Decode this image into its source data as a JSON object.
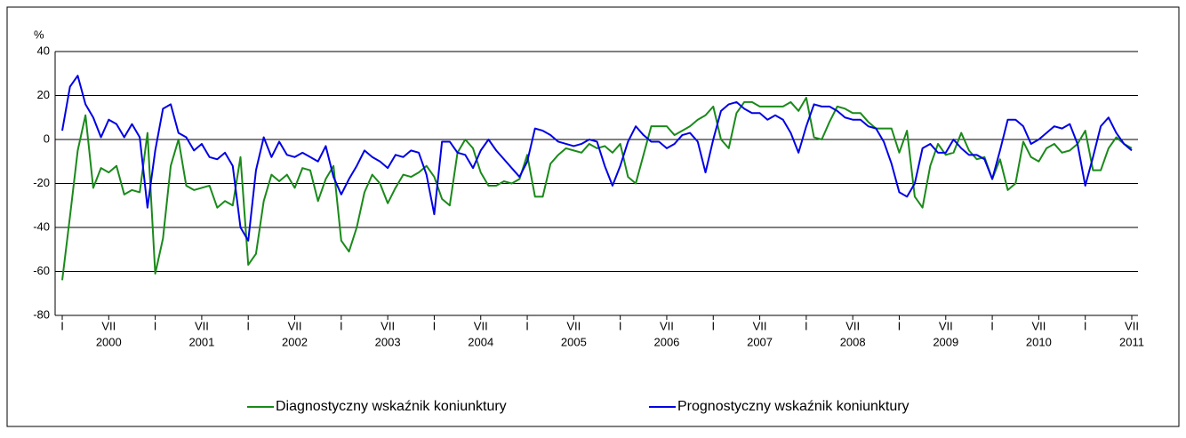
{
  "chart_data": {
    "type": "line",
    "y_label": "%",
    "categories": [
      "I",
      null,
      null,
      null,
      null,
      null,
      "VII",
      null,
      null,
      null,
      null,
      null,
      "I",
      null,
      null,
      null,
      null,
      null,
      "VII",
      null,
      null,
      null,
      null,
      null,
      "I",
      null,
      null,
      null,
      null,
      null,
      "VII",
      null,
      null,
      null,
      null,
      null,
      "I",
      null,
      null,
      null,
      null,
      null,
      "VII",
      null,
      null,
      null,
      null,
      null,
      "I",
      null,
      null,
      null,
      null,
      null,
      "VII",
      null,
      null,
      null,
      null,
      null,
      "I",
      null,
      null,
      null,
      null,
      null,
      "VII",
      null,
      null,
      null,
      null,
      null,
      "I",
      null,
      null,
      null,
      null,
      null,
      "VII",
      null,
      null,
      null,
      null,
      null,
      "I",
      null,
      null,
      null,
      null,
      null,
      "VII",
      null,
      null,
      null,
      null,
      null,
      "I",
      null,
      null,
      null,
      null,
      null,
      "VII",
      null,
      null,
      null,
      null,
      null,
      "I",
      null,
      null,
      null,
      null,
      null,
      "VII",
      null,
      null,
      null,
      null,
      null,
      "I",
      null,
      null,
      null,
      null,
      null,
      "VII",
      null,
      null,
      null,
      null,
      null,
      "I",
      null,
      null,
      null,
      null,
      null,
      "VII"
    ],
    "year_labels": [
      "2000",
      "2001",
      "2002",
      "2003",
      "2004",
      "2005",
      "2006",
      "2007",
      "2008",
      "2009",
      "2010",
      "2011"
    ],
    "series": [
      {
        "name": "Diagnostyczny wskaźnik koniunktury",
        "color": "#1a8a1a",
        "values": [
          -64,
          -35,
          -5,
          11,
          -22,
          -13,
          -15,
          -12,
          -25,
          -23,
          -24,
          3,
          -61,
          -45,
          -12,
          0,
          -21,
          -23,
          -22,
          -21,
          -31,
          -28,
          -30,
          -8,
          -57,
          -52,
          -28,
          -16,
          -19,
          -16,
          -22,
          -13,
          -14,
          -28,
          -18,
          -12,
          -46,
          -51,
          -40,
          -24,
          -16,
          -20,
          -29,
          -22,
          -16,
          -17,
          -15,
          -12,
          -17,
          -27,
          -30,
          -6,
          0,
          -4,
          -15,
          -21,
          -21,
          -19,
          -20,
          -18,
          -7,
          -26,
          -26,
          -11,
          -7,
          -4,
          -5,
          -6,
          -2,
          -4,
          -3,
          -6,
          -2,
          -17,
          -20,
          -7,
          6,
          6,
          6,
          2,
          4,
          6,
          9,
          11,
          15,
          0,
          -4,
          12,
          17,
          17,
          15,
          15,
          15,
          15,
          17,
          13,
          19,
          1,
          0,
          8,
          15,
          14,
          12,
          12,
          8,
          5,
          5,
          5,
          -6,
          4,
          -26,
          -31,
          -12,
          -2,
          -7,
          -6,
          3,
          -5,
          -9,
          -8,
          -18,
          -9,
          -23,
          -20,
          -1,
          -8,
          -10,
          -4,
          -2,
          -6,
          -5,
          -2,
          4,
          -14,
          -14,
          -4,
          1,
          -2,
          -4
        ]
      },
      {
        "name": "Prognostyczny wskaźnik koniunktury",
        "color": "#0000e6",
        "values": [
          4,
          24,
          29,
          16,
          10,
          1,
          9,
          7,
          1,
          7,
          1,
          -31,
          -5,
          14,
          16,
          3,
          1,
          -5,
          -2,
          -8,
          -9,
          -6,
          -12,
          -40,
          -46,
          -14,
          1,
          -8,
          -1,
          -7,
          -8,
          -6,
          -8,
          -10,
          -3,
          -17,
          -25,
          -18,
          -12,
          -5,
          -8,
          -10,
          -13,
          -7,
          -8,
          -5,
          -6,
          -16,
          -34,
          -1,
          -1,
          -6,
          -7,
          -13,
          -5,
          0,
          -5,
          -9,
          -13,
          -17,
          -10,
          5,
          4,
          2,
          -1,
          -2,
          -3,
          -2,
          0,
          -1,
          -12,
          -21,
          -12,
          -1,
          6,
          2,
          -1,
          -1,
          -4,
          -2,
          2,
          3,
          -1,
          -15,
          0,
          13,
          16,
          17,
          14,
          12,
          12,
          9,
          11,
          9,
          3,
          -6,
          6,
          16,
          15,
          15,
          13,
          10,
          9,
          9,
          6,
          5,
          -1,
          -11,
          -24,
          -26,
          -20,
          -4,
          -2,
          -6,
          -6,
          0,
          -4,
          -7,
          -7,
          -9,
          -18,
          -5,
          9,
          9,
          6,
          -2,
          0,
          3,
          6,
          5,
          7,
          -2,
          -21,
          -8,
          6,
          10,
          3,
          -2,
          -5
        ]
      }
    ],
    "ylim": [
      -80,
      40
    ],
    "yticks": [
      -80,
      -60,
      -40,
      -20,
      0,
      20,
      40
    ],
    "grid": true
  }
}
